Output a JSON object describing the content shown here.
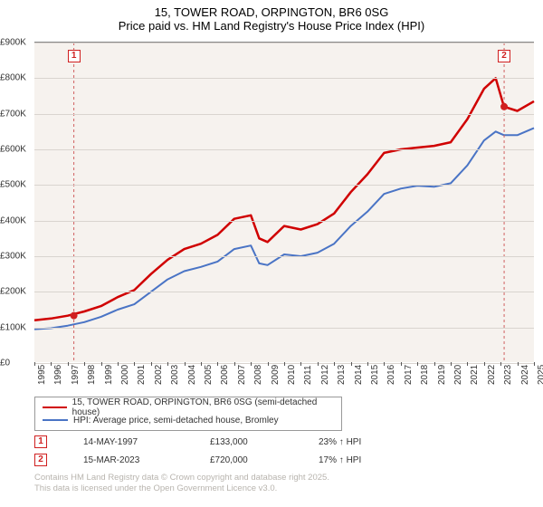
{
  "title": {
    "line1": "15, TOWER ROAD, ORPINGTON, BR6 0SG",
    "line2": "Price paid vs. HM Land Registry's House Price Index (HPI)"
  },
  "chart": {
    "type": "line",
    "background_color": "#f6f2ee",
    "grid_color": "#d9d4cf",
    "ylim": [
      0,
      900000
    ],
    "ytick_step": 100000,
    "ytick_labels": [
      "£0",
      "£100K",
      "£200K",
      "£300K",
      "£400K",
      "£500K",
      "£600K",
      "£700K",
      "£800K",
      "£900K"
    ],
    "xlim": [
      1995,
      2025
    ],
    "xtick_years": [
      1995,
      1996,
      1997,
      1998,
      1999,
      2000,
      2001,
      2002,
      2003,
      2004,
      2005,
      2006,
      2007,
      2008,
      2009,
      2010,
      2011,
      2012,
      2013,
      2014,
      2015,
      2016,
      2017,
      2018,
      2019,
      2020,
      2021,
      2022,
      2023,
      2024,
      2025
    ],
    "series": [
      {
        "name": "property",
        "label": "15, TOWER ROAD, ORPINGTON, BR6 0SG (semi-detached house)",
        "color": "#d00000",
        "line_width": 2.5,
        "points": [
          [
            1995,
            120000
          ],
          [
            1996,
            125000
          ],
          [
            1997,
            133000
          ],
          [
            1998,
            145000
          ],
          [
            1999,
            160000
          ],
          [
            2000,
            185000
          ],
          [
            2001,
            205000
          ],
          [
            2002,
            250000
          ],
          [
            2003,
            290000
          ],
          [
            2004,
            320000
          ],
          [
            2005,
            335000
          ],
          [
            2006,
            360000
          ],
          [
            2007,
            405000
          ],
          [
            2008,
            415000
          ],
          [
            2008.5,
            350000
          ],
          [
            2009,
            340000
          ],
          [
            2010,
            385000
          ],
          [
            2011,
            375000
          ],
          [
            2012,
            390000
          ],
          [
            2013,
            420000
          ],
          [
            2014,
            480000
          ],
          [
            2015,
            530000
          ],
          [
            2016,
            590000
          ],
          [
            2017,
            600000
          ],
          [
            2018,
            605000
          ],
          [
            2019,
            610000
          ],
          [
            2020,
            620000
          ],
          [
            2021,
            685000
          ],
          [
            2022,
            770000
          ],
          [
            2022.7,
            800000
          ],
          [
            2023.2,
            720000
          ],
          [
            2024,
            708000
          ],
          [
            2025,
            735000
          ]
        ]
      },
      {
        "name": "hpi",
        "label": "HPI: Average price, semi-detached house, Bromley",
        "color": "#4a74c5",
        "line_width": 2,
        "points": [
          [
            1995,
            95000
          ],
          [
            1996,
            98000
          ],
          [
            1997,
            105000
          ],
          [
            1998,
            115000
          ],
          [
            1999,
            130000
          ],
          [
            2000,
            150000
          ],
          [
            2001,
            165000
          ],
          [
            2002,
            200000
          ],
          [
            2003,
            235000
          ],
          [
            2004,
            258000
          ],
          [
            2005,
            270000
          ],
          [
            2006,
            285000
          ],
          [
            2007,
            320000
          ],
          [
            2008,
            330000
          ],
          [
            2008.5,
            280000
          ],
          [
            2009,
            275000
          ],
          [
            2010,
            305000
          ],
          [
            2011,
            300000
          ],
          [
            2012,
            310000
          ],
          [
            2013,
            335000
          ],
          [
            2014,
            385000
          ],
          [
            2015,
            425000
          ],
          [
            2016,
            475000
          ],
          [
            2017,
            490000
          ],
          [
            2018,
            498000
          ],
          [
            2019,
            495000
          ],
          [
            2020,
            505000
          ],
          [
            2021,
            555000
          ],
          [
            2022,
            625000
          ],
          [
            2022.7,
            650000
          ],
          [
            2023.2,
            640000
          ],
          [
            2024,
            640000
          ],
          [
            2025,
            660000
          ]
        ]
      }
    ],
    "markers": [
      {
        "n": "1",
        "year": 1997.37,
        "value": 133000,
        "color": "#d02020"
      },
      {
        "n": "2",
        "year": 2023.21,
        "value": 720000,
        "color": "#d02020"
      }
    ]
  },
  "legend": {
    "items": [
      {
        "color": "#d00000",
        "label": "15, TOWER ROAD, ORPINGTON, BR6 0SG (semi-detached house)"
      },
      {
        "color": "#4a74c5",
        "label": "HPI: Average price, semi-detached house, Bromley"
      }
    ]
  },
  "sales": [
    {
      "n": "1",
      "date": "14-MAY-1997",
      "price": "£133,000",
      "hpi_delta": "23% ↑ HPI"
    },
    {
      "n": "2",
      "date": "15-MAR-2023",
      "price": "£720,000",
      "hpi_delta": "17% ↑ HPI"
    }
  ],
  "copyright": {
    "line1": "Contains HM Land Registry data © Crown copyright and database right 2025.",
    "line2": "This data is licensed under the Open Government Licence v3.0."
  }
}
